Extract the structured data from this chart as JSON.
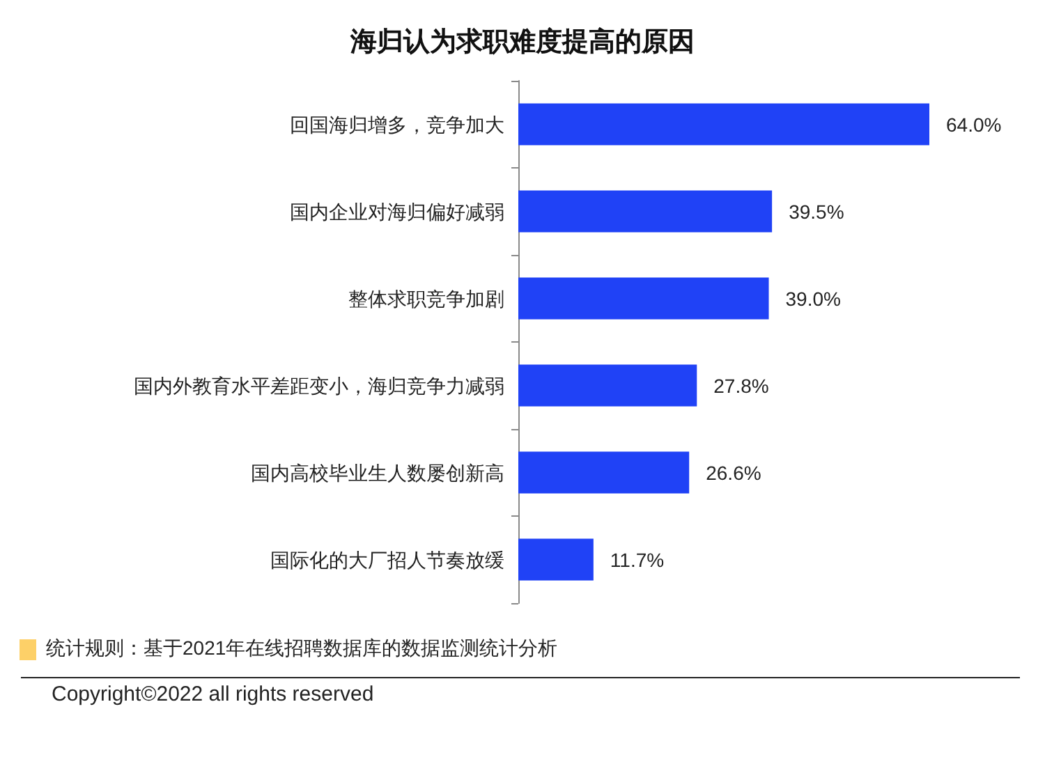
{
  "chart_data": {
    "type": "bar",
    "orientation": "horizontal",
    "title": "海归认为求职难度提高的原因",
    "categories": [
      "回国海归增多，竞争加大",
      "国内企业对海归偏好减弱",
      "整体求职竞争加剧",
      "国内外教育水平差距变小，海归竞争力减弱",
      "国内高校毕业生人数屡创新高",
      "国际化的大厂招人节奏放缓"
    ],
    "values": [
      64.0,
      39.5,
      39.0,
      27.8,
      26.6,
      11.7
    ],
    "color": "#2042f6",
    "value_labels": [
      "64.0%",
      "39.5%",
      "39.0%",
      "27.8%",
      "26.6%",
      "11.7%"
    ],
    "annotations": [
      "统计规则：基于2021年在线招聘数据库的数据监测统计分析",
      "Copyright©2022 all rights reserved"
    ]
  }
}
